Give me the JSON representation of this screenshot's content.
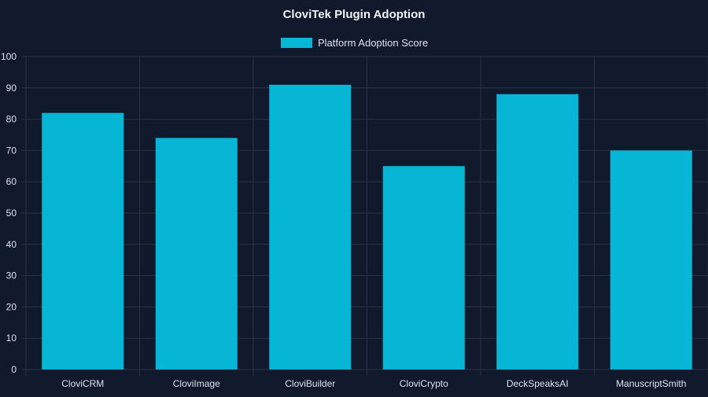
{
  "chart_data": {
    "type": "bar",
    "title": "CloviTek Plugin Adoption",
    "categories": [
      "CloviCRM",
      "CloviImage",
      "CloviBuilder",
      "CloviCrypto",
      "DeckSpeaksAI",
      "ManuscriptSmith"
    ],
    "series": [
      {
        "name": "Platform Adoption Score",
        "values": [
          82,
          74,
          91,
          65,
          88,
          70
        ]
      }
    ],
    "xlabel": "",
    "ylabel": "",
    "ylim": [
      0,
      100
    ],
    "yticks": [
      0,
      10,
      20,
      30,
      40,
      50,
      60,
      70,
      80,
      90,
      100
    ],
    "grid": true,
    "legend_position": "top-center"
  },
  "colors": {
    "background": "#111a2c",
    "bar": "#06b6d4",
    "grid": "#2a3345",
    "axis_text": "#dde3ee",
    "title_text": "#f1f4f9"
  }
}
